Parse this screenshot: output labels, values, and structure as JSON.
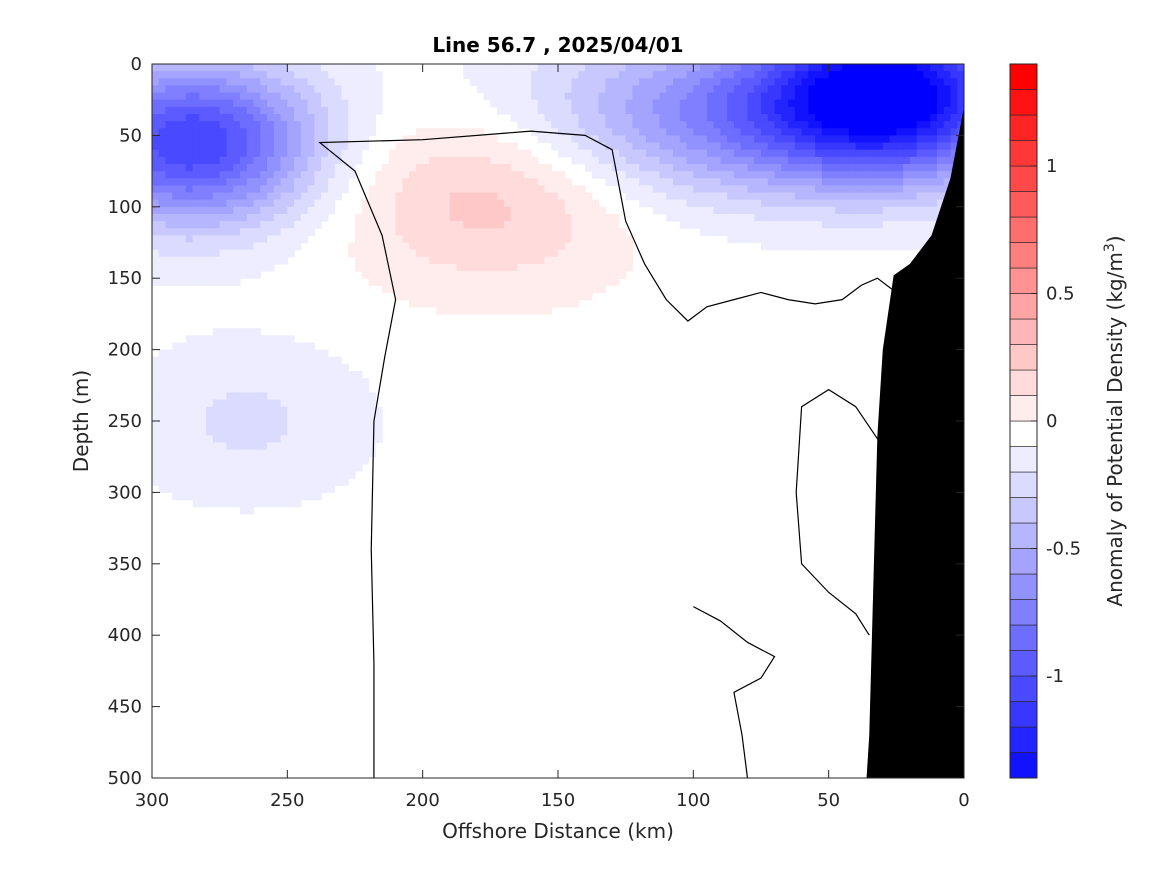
{
  "chart_data": {
    "type": "heatmap",
    "title": "Line 56.7 , 2025/04/01",
    "xlabel": "Offshore Distance (km)",
    "ylabel": "Depth (m)",
    "xlim": [
      300,
      0
    ],
    "ylim": [
      0,
      500
    ],
    "x_ticks": [
      "300",
      "250",
      "200",
      "150",
      "100",
      "50",
      "0"
    ],
    "y_ticks": [
      "0",
      "50",
      "100",
      "150",
      "200",
      "250",
      "300",
      "350",
      "400",
      "450",
      "500"
    ],
    "colorbar": {
      "label": "Anomaly of Potential Density (kg/m",
      "label_superscript": "3",
      "label_close": ")",
      "range": [
        -1.4,
        1.4
      ],
      "step": 0.1,
      "ticks": [
        "1",
        "0.5",
        "0",
        "-0.5",
        "-1"
      ],
      "tick_values": [
        1,
        0.5,
        0,
        -0.5,
        -1
      ],
      "min_color": "#0000ff",
      "zero_color": "#ffffff",
      "max_color": "#ff0000"
    },
    "field": {
      "background": 0,
      "features": [
        {
          "name": "offshore-subsurface-negative",
          "x": 285,
          "depth": 55,
          "value": -1.05
        },
        {
          "name": "nearshore-surface-negative",
          "x": 27,
          "depth": 18,
          "value": -1.15
        },
        {
          "name": "surface-negative-band",
          "x": 75,
          "depth": 35,
          "value": -0.7
        },
        {
          "name": "positive-core",
          "x": 175,
          "depth": 90,
          "value": 0.32
        },
        {
          "name": "deep-weak-negative",
          "x": 265,
          "depth": 250,
          "value": -0.17
        }
      ]
    },
    "zero_contours": [
      {
        "name": "zero-contour-main",
        "points": [
          [
            218,
            500
          ],
          [
            218,
            420
          ],
          [
            219,
            340
          ],
          [
            218,
            250
          ],
          [
            214,
            205
          ],
          [
            210,
            165
          ],
          [
            215,
            120
          ],
          [
            225,
            75
          ],
          [
            238,
            55
          ],
          [
            200,
            53
          ],
          [
            160,
            47
          ],
          [
            140,
            50
          ],
          [
            130,
            60
          ],
          [
            128,
            80
          ],
          [
            125,
            110
          ],
          [
            118,
            140
          ],
          [
            110,
            165
          ],
          [
            102,
            180
          ],
          [
            95,
            170
          ],
          [
            85,
            165
          ],
          [
            75,
            160
          ],
          [
            65,
            165
          ],
          [
            55,
            168
          ],
          [
            45,
            165
          ],
          [
            38,
            155
          ],
          [
            32,
            150
          ],
          [
            25,
            160
          ],
          [
            15,
            168
          ],
          [
            2,
            170
          ]
        ]
      },
      {
        "name": "zero-contour-nearshore",
        "points": [
          [
            30,
            268
          ],
          [
            40,
            240
          ],
          [
            50,
            228
          ],
          [
            60,
            240
          ],
          [
            62,
            300
          ],
          [
            60,
            350
          ],
          [
            50,
            370
          ],
          [
            40,
            385
          ],
          [
            35,
            400
          ]
        ]
      },
      {
        "name": "zero-contour-deep",
        "points": [
          [
            80,
            500
          ],
          [
            82,
            470
          ],
          [
            85,
            440
          ],
          [
            75,
            430
          ],
          [
            70,
            415
          ],
          [
            80,
            405
          ],
          [
            90,
            390
          ],
          [
            100,
            380
          ]
        ]
      }
    ],
    "land_mask": {
      "color": "#000000",
      "points": [
        [
          0,
          30
        ],
        [
          5,
          80
        ],
        [
          12,
          120
        ],
        [
          20,
          140
        ],
        [
          26,
          148
        ],
        [
          30,
          200
        ],
        [
          32,
          260
        ],
        [
          33,
          330
        ],
        [
          34,
          400
        ],
        [
          35,
          470
        ],
        [
          36,
          500
        ],
        [
          0,
          500
        ]
      ]
    }
  }
}
